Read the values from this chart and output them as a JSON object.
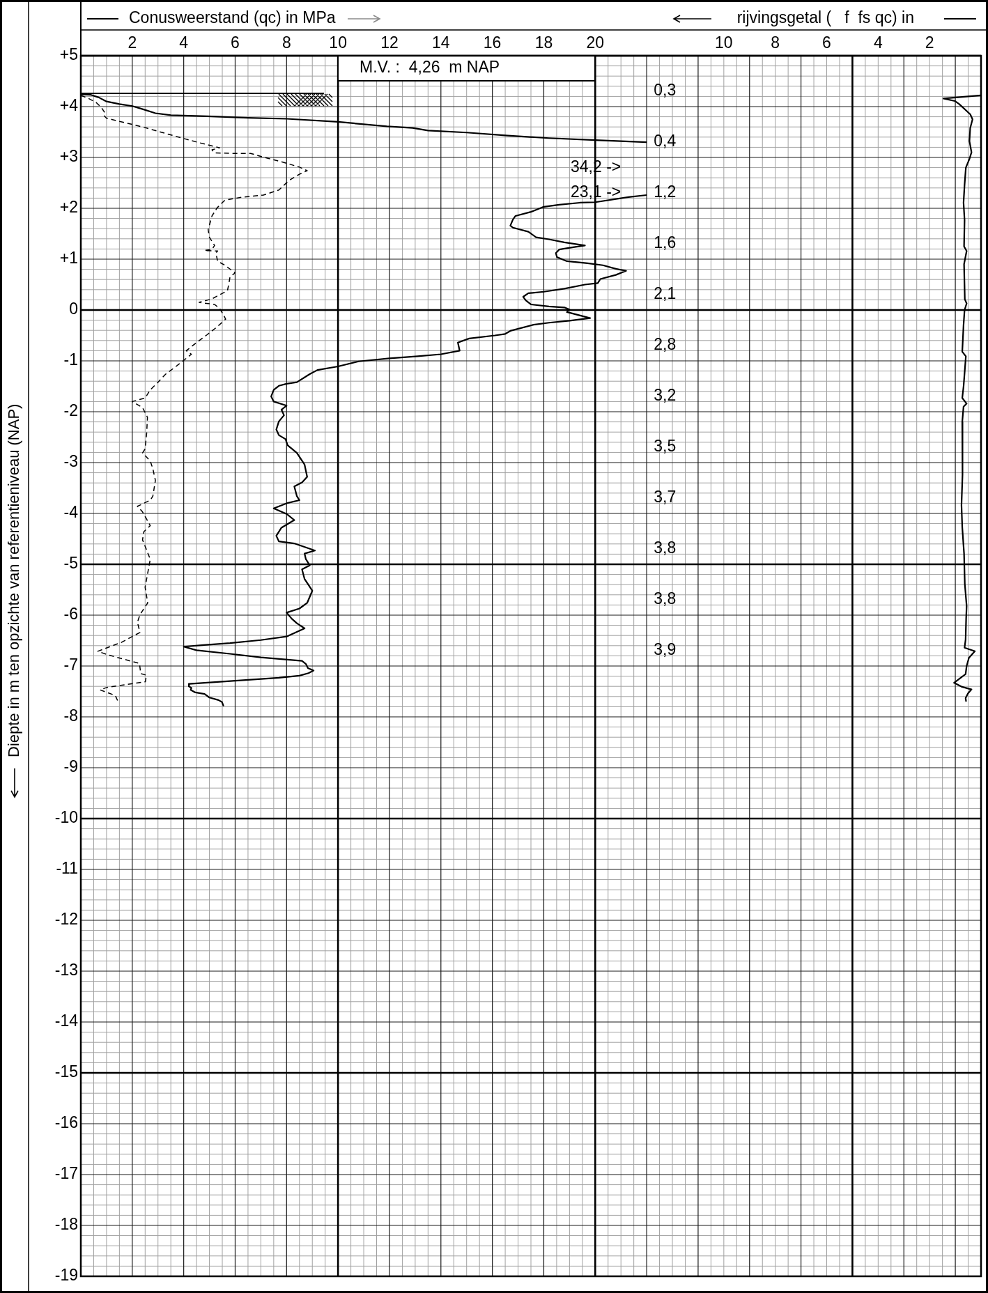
{
  "chart_data": {
    "type": "line",
    "xlabel": "Conusweerstand (qc) in MPa",
    "x2label": "rijvingsgetal (   f  fs qc) in",
    "ylabel": "Diepte in m ten opzichte van referentieniveau (NAP)",
    "xlim": [
      0,
      35
    ],
    "xticks": [
      {
        "value": 0.5,
        "label": null
      },
      {
        "value": 1,
        "label": null
      },
      {
        "value": 1.5,
        "label": null
      },
      2,
      {
        "value": 2.5,
        "label": null
      },
      {
        "value": 3,
        "label": null
      },
      {
        "value": 3.5,
        "label": null
      },
      4,
      {
        "value": 4.5,
        "label": null
      },
      {
        "value": 5,
        "label": null
      },
      {
        "value": 5.5,
        "label": null
      },
      6,
      {
        "value": 6.5,
        "label": null
      },
      {
        "value": 7,
        "label": null
      },
      {
        "value": 7.5,
        "label": null
      },
      8,
      {
        "value": 8.5,
        "label": null
      },
      {
        "value": 9,
        "label": null
      },
      {
        "value": 9.5,
        "label": null
      },
      10,
      {
        "value": 10.5,
        "label": null
      },
      {
        "value": 11,
        "label": null
      },
      {
        "value": 11.5,
        "label": null
      },
      12,
      {
        "value": 12.5,
        "label": null
      },
      {
        "value": 13,
        "label": null
      },
      {
        "value": 13.5,
        "label": null
      },
      14,
      {
        "value": 14.5,
        "label": null
      },
      {
        "value": 15,
        "label": null
      },
      {
        "value": 15.5,
        "label": null
      },
      16,
      {
        "value": 16.5,
        "label": null
      },
      {
        "value": 17,
        "label": null
      },
      {
        "value": 17.5,
        "label": null
      },
      18,
      {
        "value": 18.5,
        "label": null
      },
      {
        "value": 19,
        "label": null
      },
      {
        "value": 19.5,
        "label": null
      },
      20,
      {
        "value": 20.5,
        "label": null
      },
      {
        "value": 21,
        "label": null
      },
      {
        "value": 21.5,
        "label": null
      },
      {
        "value": 22,
        "label": null
      },
      {
        "value": 22.5,
        "label": null
      },
      {
        "value": 23,
        "label": null
      },
      {
        "value": 23.5,
        "label": null
      },
      {
        "value": 24,
        "label": null
      },
      {
        "value": 24.5,
        "label": null
      },
      {
        "value": 25,
        "label": null
      },
      {
        "value": 25.5,
        "label": null
      },
      {
        "value": 26,
        "label": null
      },
      {
        "value": 26.5,
        "label": null
      },
      {
        "value": 27,
        "label": null
      },
      {
        "value": 27.5,
        "label": null
      },
      {
        "value": 28,
        "label": null
      },
      {
        "value": 28.5,
        "label": null
      },
      {
        "value": 29,
        "label": null
      },
      {
        "value": 29.5,
        "label": null
      },
      {
        "value": 30,
        "label": null
      },
      {
        "value": 30.5,
        "label": null
      },
      {
        "value": 31,
        "label": null
      },
      {
        "value": 31.5,
        "label": null
      },
      {
        "value": 32,
        "label": null
      },
      {
        "value": 32.5,
        "label": null
      },
      {
        "value": 33,
        "label": null
      },
      {
        "value": 33.5,
        "label": null
      },
      {
        "value": 34,
        "label": null
      },
      {
        "value": 34.5,
        "label": null
      }
    ],
    "x2lim": [
      35,
      0
    ],
    "x2ticks": [
      10,
      8,
      6,
      4,
      2
    ],
    "ylim": [
      -19,
      5
    ],
    "yticks": [
      {
        "value": 5,
        "label": "+5"
      },
      {
        "value": 4.8,
        "label": null
      },
      {
        "value": 4.6,
        "label": null
      },
      {
        "value": 4.4,
        "label": null
      },
      {
        "value": 4.2,
        "label": null
      },
      {
        "value": 4,
        "label": "+4"
      },
      {
        "value": 3.8,
        "label": null
      },
      {
        "value": 3.6,
        "label": null
      },
      {
        "value": 3.4,
        "label": null
      },
      {
        "value": 3.2,
        "label": null
      },
      {
        "value": 3,
        "label": "+3"
      },
      {
        "value": 2.8,
        "label": null
      },
      {
        "value": 2.6,
        "label": null
      },
      {
        "value": 2.4,
        "label": null
      },
      {
        "value": 2.2,
        "label": null
      },
      {
        "value": 2,
        "label": "+2"
      },
      {
        "value": 1.8,
        "label": null
      },
      {
        "value": 1.6,
        "label": null
      },
      {
        "value": 1.4,
        "label": null
      },
      {
        "value": 1.2,
        "label": null
      },
      {
        "value": 1,
        "label": "+1"
      },
      {
        "value": 0.8,
        "label": null
      },
      {
        "value": 0.6,
        "label": null
      },
      {
        "value": 0.4,
        "label": null
      },
      {
        "value": 0.2,
        "label": null
      },
      0,
      {
        "value": -0.2,
        "label": null
      },
      {
        "value": -0.4,
        "label": null
      },
      {
        "value": -0.6,
        "label": null
      },
      {
        "value": -0.8,
        "label": null
      },
      -1,
      {
        "value": -1.2,
        "label": null
      },
      {
        "value": -1.4,
        "label": null
      },
      {
        "value": -1.6,
        "label": null
      },
      {
        "value": -1.8,
        "label": null
      },
      -2,
      {
        "value": -2.2,
        "label": null
      },
      {
        "value": -2.4,
        "label": null
      },
      {
        "value": -2.6,
        "label": null
      },
      {
        "value": -2.8,
        "label": null
      },
      -3,
      {
        "value": -3.2,
        "label": null
      },
      {
        "value": -3.4,
        "label": null
      },
      {
        "value": -3.6,
        "label": null
      },
      {
        "value": -3.8,
        "label": null
      },
      -4,
      {
        "value": -4.2,
        "label": null
      },
      {
        "value": -4.4,
        "label": null
      },
      {
        "value": -4.6,
        "label": null
      },
      {
        "value": -4.8,
        "label": null
      },
      -5,
      {
        "value": -5.2,
        "label": null
      },
      {
        "value": -5.4,
        "label": null
      },
      {
        "value": -5.6,
        "label": null
      },
      {
        "value": -5.8,
        "label": null
      },
      -6,
      {
        "value": -6.2,
        "label": null
      },
      {
        "value": -6.4,
        "label": null
      },
      {
        "value": -6.6,
        "label": null
      },
      {
        "value": -6.8,
        "label": null
      },
      -7,
      {
        "value": -7.2,
        "label": null
      },
      {
        "value": -7.4,
        "label": null
      },
      {
        "value": -7.6,
        "label": null
      },
      {
        "value": -7.8,
        "label": null
      },
      -8,
      {
        "value": -8.2,
        "label": null
      },
      {
        "value": -8.4,
        "label": null
      },
      {
        "value": -8.6,
        "label": null
      },
      {
        "value": -8.8,
        "label": null
      },
      -9,
      {
        "value": -9.2,
        "label": null
      },
      {
        "value": -9.4,
        "label": null
      },
      {
        "value": -9.6,
        "label": null
      },
      {
        "value": -9.8,
        "label": null
      },
      -10,
      {
        "value": -10.2,
        "label": null
      },
      {
        "value": -10.4,
        "label": null
      },
      {
        "value": -10.6,
        "label": null
      },
      {
        "value": -10.8,
        "label": null
      },
      -11,
      {
        "value": -11.2,
        "label": null
      },
      {
        "value": -11.4,
        "label": null
      },
      {
        "value": -11.6,
        "label": null
      },
      {
        "value": -11.8,
        "label": null
      },
      -12,
      {
        "value": -12.2,
        "label": null
      },
      {
        "value": -12.4,
        "label": null
      },
      {
        "value": -12.6,
        "label": null
      },
      {
        "value": -12.8,
        "label": null
      },
      -13,
      {
        "value": -13.2,
        "label": null
      },
      {
        "value": -13.4,
        "label": null
      },
      {
        "value": -13.6,
        "label": null
      },
      {
        "value": -13.8,
        "label": null
      },
      -14,
      {
        "value": -14.2,
        "label": null
      },
      {
        "value": -14.4,
        "label": null
      },
      {
        "value": -14.6,
        "label": null
      },
      {
        "value": -14.8,
        "label": null
      },
      -15,
      {
        "value": -15.2,
        "label": null
      },
      {
        "value": -15.4,
        "label": null
      },
      {
        "value": -15.6,
        "label": null
      },
      {
        "value": -15.8,
        "label": null
      },
      -16,
      {
        "value": -16.2,
        "label": null
      },
      {
        "value": -16.4,
        "label": null
      },
      {
        "value": -16.6,
        "label": null
      },
      {
        "value": -16.8,
        "label": null
      },
      -17,
      {
        "value": -17.2,
        "label": null
      },
      {
        "value": -17.4,
        "label": null
      },
      {
        "value": -17.6,
        "label": null
      },
      {
        "value": -17.8,
        "label": null
      },
      -18,
      {
        "value": -18.2,
        "label": null
      },
      {
        "value": -18.4,
        "label": null
      },
      {
        "value": -18.6,
        "label": null
      },
      {
        "value": -18.8,
        "label": null
      },
      -19
    ],
    "grid": true,
    "line_style": "solid",
    "series": [
      {
        "color": "#000000",
        "x": [
          0.0,
          0.4,
          0.7,
          1.0,
          1.5,
          2.0,
          2.4,
          2.9,
          3.5,
          4.9,
          6.5,
          8.0,
          10.0,
          11.9,
          12.9,
          13.5,
          15.0,
          16.6,
          18.2,
          20.0,
          22.0,
          null,
          22.0,
          21.3,
          20.0,
          19.4,
          18.6,
          18.0,
          17.5,
          16.9,
          16.8,
          16.7,
          16.8,
          17.4,
          17.7,
          18.2,
          18.8,
          19.6,
          19.1,
          18.6,
          18.47,
          18.51,
          18.9,
          19.7,
          20.3,
          20.8,
          21.2,
          20.8,
          20.2,
          20.1,
          19.6,
          18.8,
          18.0,
          17.4,
          17.2,
          17.3,
          17.5,
          18.2,
          18.8,
          19.0,
          18.9,
          19.8,
          19.0,
          18.2,
          17.6,
          16.7,
          16.5,
          16.1,
          15.1,
          14.66,
          14.73,
          14.0,
          13.1,
          12.0,
          10.8,
          10.0,
          9.2,
          8.9,
          8.4,
          8.0,
          7.7,
          7.5,
          7.4,
          7.5,
          8.0,
          7.8,
          7.9,
          7.7,
          7.6,
          7.7,
          7.96,
          8.04,
          8.4,
          8.7,
          8.8,
          8.6,
          8.3,
          8.4,
          8.5,
          8.0,
          7.5,
          8.0,
          8.3,
          7.8,
          7.6,
          7.7,
          8.3,
          9.1,
          8.7,
          8.75,
          8.9,
          8.6,
          8.7,
          9.0,
          8.8,
          8.5,
          8.0,
          8.2,
          8.4,
          8.7,
          8.0,
          7.0,
          5.8,
          4.7,
          4.0,
          4.5,
          5.8,
          7.0,
          8.6,
          8.75,
          8.83,
          9.05,
          8.85,
          8.5,
          7.7,
          4.22,
          4.2,
          4.3,
          4.27,
          4.45,
          4.81,
          5.0,
          5.35,
          5.49,
          5.55
        ],
        "values": [
          4.24,
          4.23,
          4.18,
          4.1,
          4.05,
          4.01,
          3.95,
          3.87,
          3.83,
          3.81,
          3.78,
          3.76,
          3.7,
          3.61,
          3.58,
          3.53,
          3.49,
          3.43,
          3.38,
          3.34,
          3.3,
          null,
          2.26,
          2.22,
          2.12,
          2.11,
          2.07,
          2.03,
          1.93,
          1.85,
          1.78,
          1.66,
          1.62,
          1.54,
          1.43,
          1.39,
          1.33,
          1.27,
          1.23,
          1.19,
          1.12,
          1.04,
          0.96,
          0.92,
          0.88,
          0.81,
          0.77,
          0.69,
          0.61,
          0.53,
          0.5,
          0.42,
          0.36,
          0.33,
          0.26,
          0.19,
          0.11,
          0.07,
          0.05,
          0.01,
          -0.04,
          -0.16,
          -0.21,
          -0.25,
          -0.29,
          -0.41,
          -0.47,
          -0.5,
          -0.56,
          -0.64,
          -0.8,
          -0.87,
          -0.91,
          -0.95,
          -1.01,
          -1.11,
          -1.18,
          -1.26,
          -1.42,
          -1.45,
          -1.49,
          -1.57,
          -1.7,
          -1.8,
          -1.88,
          -1.96,
          -2.07,
          -2.19,
          -2.35,
          -2.46,
          -2.54,
          -2.66,
          -2.81,
          -3.04,
          -3.28,
          -3.39,
          -3.47,
          -3.66,
          -3.74,
          -3.8,
          -3.9,
          -4.01,
          -4.13,
          -4.28,
          -4.44,
          -4.55,
          -4.59,
          -4.73,
          -4.79,
          -4.9,
          -5.02,
          -5.1,
          -5.29,
          -5.52,
          -5.76,
          -5.87,
          -5.95,
          -6.07,
          -6.16,
          -6.26,
          -6.42,
          -6.49,
          -6.55,
          -6.59,
          -6.62,
          -6.69,
          -6.76,
          -6.83,
          -6.9,
          -6.96,
          -7.04,
          -7.09,
          -7.14,
          -7.19,
          -7.23,
          -7.35,
          -7.4,
          -7.43,
          -7.47,
          -7.52,
          -7.55,
          -7.62,
          -7.67,
          -7.71,
          -7.79
        ]
      },
      {
        "color": "#000000",
        "line_style": "dashed",
        "x": [
          0.0,
          0.3,
          0.6,
          0.8,
          0.92,
          0.89,
          1.0,
          1.5,
          2.4,
          3.8,
          4.6,
          5.4,
          5.1,
          5.2,
          5.9,
          6.6,
          7.0,
          7.9,
          8.5,
          8.8,
          8.5,
          8.1,
          7.7,
          7.1,
          6.3,
          5.6,
          5.3,
          5.1,
          4.95,
          5.0,
          5.2,
          5.1,
          4.8,
          5.32,
          5.25,
          5.32,
          5.6,
          6.0,
          5.8,
          5.75,
          5.7,
          5.4,
          5.1,
          4.6,
          5.2,
          5.4,
          5.55,
          5.63,
          5.3,
          4.9,
          4.5,
          4.1,
          4.3,
          3.9,
          3.7,
          3.3,
          3.0,
          2.7,
          2.5,
          2.0,
          2.4,
          2.59,
          2.56,
          2.5,
          2.4,
          2.7,
          2.8,
          2.9,
          2.8,
          2.7,
          2.2,
          2.4,
          2.7,
          2.45,
          2.4,
          2.7,
          2.5,
          2.6,
          2.3,
          2.2,
          2.3,
          2.0,
          1.6,
          0.66,
          1.05,
          2.28,
          2.33,
          2.55,
          2.51,
          1.02,
          0.75,
          1.34,
          1.43
        ],
        "values": [
          4.22,
          4.16,
          4.08,
          3.98,
          3.89,
          3.83,
          3.77,
          3.71,
          3.6,
          3.4,
          3.29,
          3.19,
          3.15,
          3.09,
          3.08,
          3.08,
          3.02,
          2.9,
          2.81,
          2.74,
          2.67,
          2.55,
          2.36,
          2.26,
          2.22,
          2.16,
          2.01,
          1.85,
          1.58,
          1.43,
          1.27,
          1.19,
          1.17,
          1.16,
          1.12,
          0.96,
          0.88,
          0.73,
          0.65,
          0.5,
          0.38,
          0.3,
          0.22,
          0.15,
          0.11,
          0.03,
          -0.1,
          -0.18,
          -0.33,
          -0.49,
          -0.64,
          -0.8,
          -0.87,
          -1.03,
          -1.11,
          -1.26,
          -1.42,
          -1.57,
          -1.73,
          -1.8,
          -1.92,
          -2.11,
          -2.42,
          -2.73,
          -2.81,
          -2.97,
          -3.12,
          -3.35,
          -3.66,
          -3.74,
          -3.86,
          -3.97,
          -4.24,
          -4.36,
          -4.52,
          -4.9,
          -5.45,
          -5.76,
          -5.99,
          -6.14,
          -6.34,
          -6.42,
          -6.53,
          -6.71,
          -6.78,
          -6.95,
          -7.15,
          -7.18,
          -7.31,
          -7.42,
          -7.47,
          -7.58,
          -7.68
        ]
      },
      {
        "color": "#000000",
        "axis": "x2",
        "x": [
          0.0,
          1.46,
          1.02,
          0.85,
          0.42,
          0.33,
          0.42,
          0.45,
          0.37,
          0.45,
          0.59,
          0.64,
          0.68,
          0.64,
          0.66,
          0.56,
          0.66,
          0.63,
          0.56,
          0.64,
          0.68,
          0.73,
          0.59,
          0.68,
          0.73,
          0.56,
          0.68,
          0.73,
          0.71,
          0.73,
          0.76,
          0.73,
          0.66,
          0.63,
          0.56,
          0.58,
          0.6,
          0.64,
          0.24,
          0.47,
          0.56,
          0.6,
          1.05,
          0.74,
          0.37,
          0.51,
          0.6,
          0.58
        ],
        "values": [
          4.22,
          4.16,
          4.11,
          4.05,
          3.85,
          3.75,
          3.58,
          3.32,
          3.1,
          2.97,
          2.8,
          2.46,
          2.11,
          1.77,
          1.25,
          1.16,
          0.9,
          0.21,
          0.13,
          0.0,
          -0.3,
          -0.82,
          -0.91,
          -1.51,
          -1.73,
          -1.84,
          -1.9,
          -2.2,
          -2.72,
          -3.24,
          -3.84,
          -4.27,
          -4.79,
          -5.39,
          -5.82,
          -6.08,
          -6.48,
          -6.64,
          -6.71,
          -6.84,
          -7.0,
          -7.16,
          -7.33,
          -7.41,
          -7.46,
          -7.54,
          -7.63,
          -7.7
        ]
      }
    ],
    "ref_lines": [
      {
        "axis": "y",
        "value": 4.26,
        "label": "M.V. :  4,26  m NAP"
      }
    ],
    "annotations": [
      "34,2 ->",
      "23,1 ->",
      "0,3",
      "0,4",
      "1,2",
      "1,6",
      "2,1",
      "2,8",
      "3,2",
      "3,5",
      "3,7",
      "3,8",
      "3,8",
      "3,9"
    ]
  }
}
